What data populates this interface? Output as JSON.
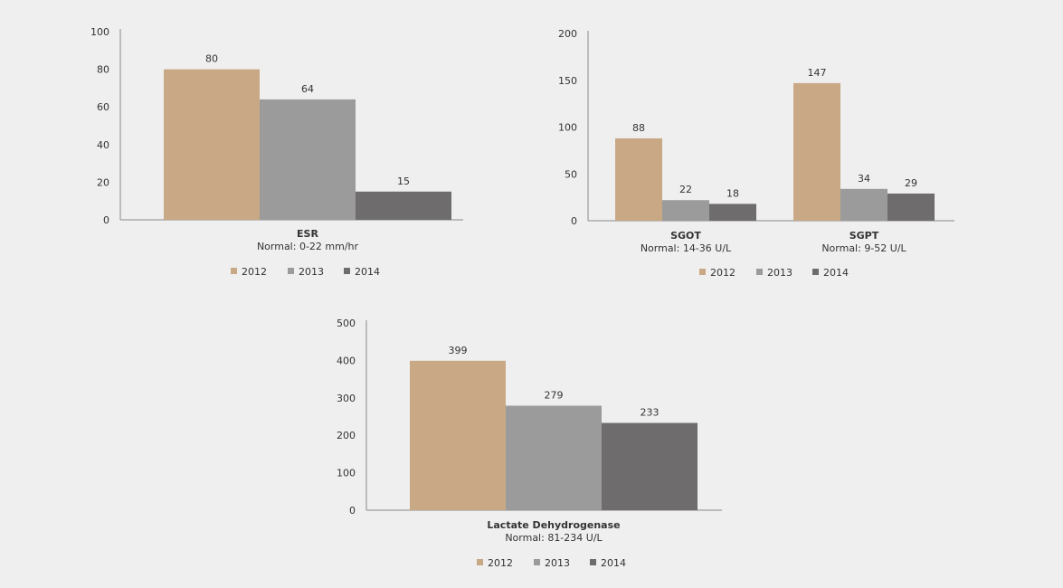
{
  "colors": {
    "s2012": "#c9a886",
    "s2013": "#9b9b9b",
    "s2014": "#6e6c6c",
    "axis": "#888888"
  },
  "chart_data": [
    {
      "type": "bar",
      "categories": [
        {
          "name": "ESR",
          "subtitle": "Normal: 0-22 mm/hr"
        }
      ],
      "series": [
        {
          "name": "2012",
          "values": [
            80
          ]
        },
        {
          "name": "2013",
          "values": [
            64
          ]
        },
        {
          "name": "2014",
          "values": [
            15
          ]
        }
      ],
      "ylim": [
        0,
        100
      ],
      "yticks": [
        0,
        20,
        40,
        60,
        80,
        100
      ],
      "legend": "bottom",
      "grid": false
    },
    {
      "type": "bar",
      "categories": [
        {
          "name": "SGOT",
          "subtitle": "Normal: 14-36 U/L"
        },
        {
          "name": "SGPT",
          "subtitle": "Normal: 9-52 U/L"
        }
      ],
      "series": [
        {
          "name": "2012",
          "values": [
            88,
            147
          ]
        },
        {
          "name": "2013",
          "values": [
            22,
            34
          ]
        },
        {
          "name": "2014",
          "values": [
            18,
            29
          ]
        }
      ],
      "ylim": [
        0,
        200
      ],
      "yticks": [
        0,
        50,
        100,
        150,
        200
      ],
      "legend": "bottom",
      "grid": false
    },
    {
      "type": "bar",
      "categories": [
        {
          "name": "Lactate Dehydrogenase",
          "subtitle": "Normal: 81-234 U/L"
        }
      ],
      "series": [
        {
          "name": "2012",
          "values": [
            399
          ]
        },
        {
          "name": "2013",
          "values": [
            279
          ]
        },
        {
          "name": "2014",
          "values": [
            233
          ]
        }
      ],
      "ylim": [
        0,
        500
      ],
      "yticks": [
        0,
        100,
        200,
        300,
        400,
        500
      ],
      "legend": "bottom",
      "grid": false
    }
  ]
}
